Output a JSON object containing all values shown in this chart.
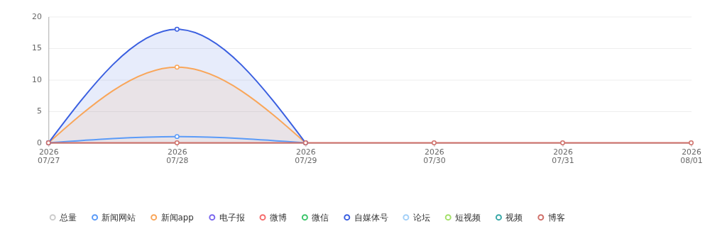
{
  "chart_data": {
    "type": "line",
    "x": [
      "2026-07-27",
      "2026-07-28",
      "2026-07-29",
      "2026-07-30",
      "2026-07-31",
      "2026-08-01"
    ],
    "xlim": [
      "2026-07-27",
      "2026-08-01"
    ],
    "xticks": [
      {
        "value": "2026-07-27",
        "label": "2026\n07/27"
      },
      {
        "value": "2026-07-28",
        "label": "2026\n07/28"
      },
      {
        "value": "2026-07-29",
        "label": "2026\n07/29"
      },
      {
        "value": "2026-07-30",
        "label": "2026\n07/30"
      },
      {
        "value": "2026-07-31",
        "label": "2026\n07/31"
      },
      {
        "value": "2026-08-01",
        "label": "2026\n08/01"
      }
    ],
    "ylim": [
      0,
      20
    ],
    "yticks": [
      0,
      5,
      10,
      15,
      20
    ],
    "grid": "y",
    "legend": "bottom",
    "marker": "circle",
    "line_style": "solid",
    "series": [
      {
        "name": "总量",
        "color": "#cccccc",
        "values": [
          null,
          null,
          null,
          null,
          null,
          null
        ]
      },
      {
        "name": "新闻网站",
        "color": "#5b9bf8",
        "values": [
          0,
          1,
          0,
          null,
          null,
          null
        ]
      },
      {
        "name": "新闻app",
        "color": "#f9a65a",
        "type": "area",
        "values": [
          0,
          12,
          0,
          null,
          null,
          null
        ]
      },
      {
        "name": "电子报",
        "color": "#7b68ee",
        "values": [
          null,
          null,
          null,
          null,
          null,
          null
        ]
      },
      {
        "name": "微博",
        "color": "#f56c6c",
        "values": [
          null,
          null,
          null,
          null,
          null,
          null
        ]
      },
      {
        "name": "微信",
        "color": "#3ec66c",
        "values": [
          null,
          null,
          null,
          null,
          null,
          null
        ]
      },
      {
        "name": "自媒体号",
        "color": "#3a5fe0",
        "type": "area",
        "values": [
          0,
          18,
          0,
          null,
          null,
          null
        ]
      },
      {
        "name": "论坛",
        "color": "#a3d0f8",
        "values": [
          null,
          null,
          null,
          null,
          null,
          null
        ]
      },
      {
        "name": "短视频",
        "color": "#a4e06a",
        "values": [
          null,
          null,
          null,
          null,
          null,
          null
        ]
      },
      {
        "name": "视频",
        "color": "#3aa9a8",
        "values": [
          null,
          null,
          null,
          null,
          null,
          null
        ]
      },
      {
        "name": "博客",
        "color": "#d0706a",
        "values": [
          0,
          0,
          0,
          0,
          0,
          0
        ]
      }
    ]
  }
}
